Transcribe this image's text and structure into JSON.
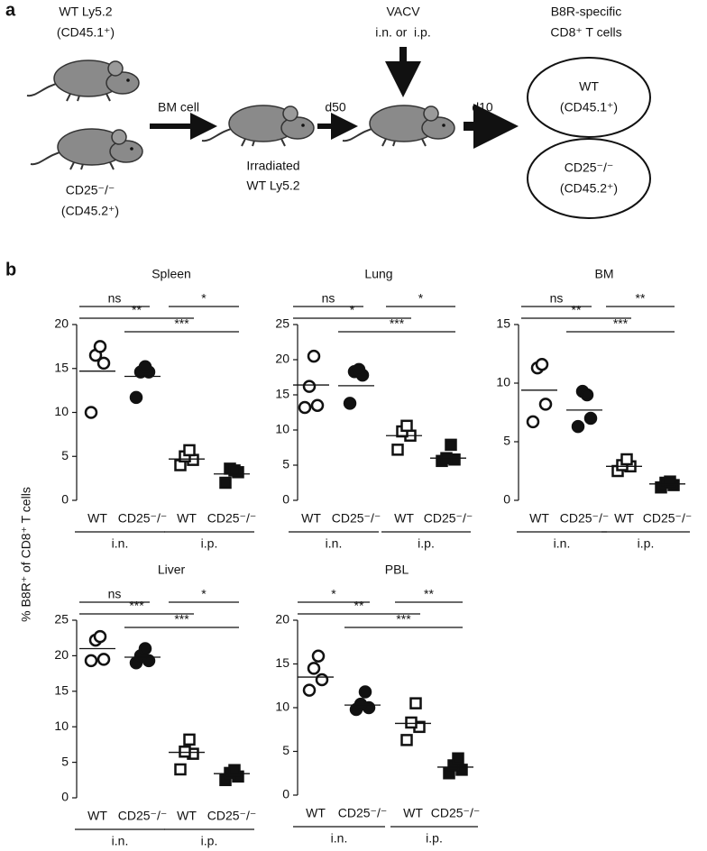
{
  "panel_labels": [
    "a",
    "b"
  ],
  "diagram": {
    "donor_wt": [
      "WT Ly5.2",
      "(CD45.1⁺)"
    ],
    "donor_ko": [
      "CD25⁻/⁻",
      "(CD45.2⁺)"
    ],
    "transfer": "BM cell",
    "recipient": [
      "Irradiated",
      "WT Ly5.2"
    ],
    "wait": "d50",
    "infection": [
      "VACV",
      "i.n. or  i.p."
    ],
    "readout_wait": "d10",
    "readout_title": [
      "B8R-specific",
      "CD8⁺ T cells"
    ],
    "readout_wt": [
      "WT",
      "(CD45.1⁺)"
    ],
    "readout_ko": [
      "CD25⁻/⁻",
      "(CD45.2⁺)"
    ]
  },
  "y_label": "% B8R⁺ of CD8⁺ T cells",
  "chart_data": [
    {
      "type": "strip",
      "title": "Spleen",
      "categories": [
        "WT",
        "CD25⁻/⁻",
        "WT",
        "CD25⁻/⁻"
      ],
      "group_labels": [
        "i.n.",
        "i.p."
      ],
      "markers": [
        "open-circle",
        "filled-circle",
        "open-square",
        "filled-square"
      ],
      "points": [
        [
          10,
          15.6,
          16.5,
          17.5
        ],
        [
          11.7,
          14.6,
          14.6,
          15.2
        ],
        [
          4.0,
          4.6,
          5.0,
          5.7
        ],
        [
          2.0,
          3.2,
          3.6,
          3.4
        ]
      ],
      "means": [
        14.7,
        14.1,
        4.7,
        3.0
      ],
      "ylim": [
        0,
        20
      ],
      "yticks": [
        0,
        5,
        10,
        15,
        20
      ],
      "comparisons": [
        {
          "from": 0,
          "to": 1,
          "label": "ns"
        },
        {
          "from": 0,
          "to": 2,
          "label": "**"
        },
        {
          "from": 2,
          "to": 3,
          "label": "*"
        },
        {
          "from": 1,
          "to": 3,
          "label": "***"
        }
      ]
    },
    {
      "type": "strip",
      "title": "Lung",
      "categories": [
        "WT",
        "CD25⁻/⁻",
        "WT",
        "CD25⁻/⁻"
      ],
      "group_labels": [
        "i.n.",
        "i.p."
      ],
      "markers": [
        "open-circle",
        "filled-circle",
        "open-square",
        "filled-square"
      ],
      "points": [
        [
          13.2,
          13.5,
          16.2,
          20.5
        ],
        [
          13.8,
          17.8,
          18.3,
          18.6
        ],
        [
          7.2,
          9.2,
          9.8,
          10.6
        ],
        [
          5.6,
          5.8,
          6.0,
          7.9
        ]
      ],
      "means": [
        16.4,
        16.3,
        9.2,
        6.0
      ],
      "ylim": [
        0,
        25
      ],
      "yticks": [
        0,
        5,
        10,
        15,
        20,
        25
      ],
      "comparisons": [
        {
          "from": 0,
          "to": 1,
          "label": "ns"
        },
        {
          "from": 0,
          "to": 2,
          "label": "*"
        },
        {
          "from": 2,
          "to": 3,
          "label": "*"
        },
        {
          "from": 1,
          "to": 3,
          "label": "***"
        }
      ]
    },
    {
      "type": "strip",
      "title": "BM",
      "categories": [
        "WT",
        "CD25⁻/⁻",
        "WT",
        "CD25⁻/⁻"
      ],
      "group_labels": [
        "i.n.",
        "i.p."
      ],
      "markers": [
        "open-circle",
        "filled-circle",
        "open-square",
        "filled-square"
      ],
      "points": [
        [
          6.7,
          8.2,
          11.3,
          11.6
        ],
        [
          6.3,
          7.0,
          9.3,
          9.0
        ],
        [
          2.5,
          2.9,
          3.0,
          3.5
        ],
        [
          1.1,
          1.3,
          1.5,
          1.6
        ]
      ],
      "means": [
        9.4,
        7.7,
        2.9,
        1.4
      ],
      "ylim": [
        0,
        15
      ],
      "yticks": [
        0,
        5,
        10,
        15
      ],
      "comparisons": [
        {
          "from": 0,
          "to": 1,
          "label": "ns"
        },
        {
          "from": 0,
          "to": 2,
          "label": "**"
        },
        {
          "from": 2,
          "to": 3,
          "label": "**"
        },
        {
          "from": 1,
          "to": 3,
          "label": "***"
        }
      ]
    },
    {
      "type": "strip",
      "title": "Liver",
      "categories": [
        "WT",
        "CD25⁻/⁻",
        "WT",
        "CD25⁻/⁻"
      ],
      "group_labels": [
        "i.n.",
        "i.p."
      ],
      "markers": [
        "open-circle",
        "filled-circle",
        "open-square",
        "filled-square"
      ],
      "points": [
        [
          19.3,
          19.5,
          22.2,
          22.7
        ],
        [
          19.0,
          19.3,
          20.0,
          21.0
        ],
        [
          4.0,
          6.2,
          6.5,
          8.2
        ],
        [
          2.5,
          3.0,
          3.5,
          3.9
        ]
      ],
      "means": [
        21,
        19.8,
        6.4,
        3.4
      ],
      "ylim": [
        0,
        25
      ],
      "yticks": [
        0,
        5,
        10,
        15,
        20,
        25
      ],
      "comparisons": [
        {
          "from": 0,
          "to": 1,
          "label": "ns"
        },
        {
          "from": 0,
          "to": 2,
          "label": "***"
        },
        {
          "from": 2,
          "to": 3,
          "label": "*"
        },
        {
          "from": 1,
          "to": 3,
          "label": "***"
        }
      ]
    },
    {
      "type": "strip",
      "title": "PBL",
      "categories": [
        "WT",
        "CD25⁻/⁻",
        "WT",
        "CD25⁻/⁻"
      ],
      "group_labels": [
        "i.n.",
        "i.p."
      ],
      "markers": [
        "open-circle",
        "filled-circle",
        "open-square",
        "filled-square"
      ],
      "points": [
        [
          12,
          13.2,
          14.5,
          15.9
        ],
        [
          9.8,
          10.0,
          10.4,
          11.8
        ],
        [
          6.3,
          7.8,
          8.3,
          10.5
        ],
        [
          2.5,
          2.9,
          3.4,
          4.2
        ]
      ],
      "means": [
        13.5,
        10.3,
        8.2,
        3.2
      ],
      "ylim": [
        0,
        20
      ],
      "yticks": [
        0,
        5,
        10,
        15,
        20
      ],
      "comparisons": [
        {
          "from": 0,
          "to": 1,
          "label": "*"
        },
        {
          "from": 0,
          "to": 2,
          "label": "**"
        },
        {
          "from": 2,
          "to": 3,
          "label": "**"
        },
        {
          "from": 1,
          "to": 3,
          "label": "***"
        }
      ]
    }
  ]
}
